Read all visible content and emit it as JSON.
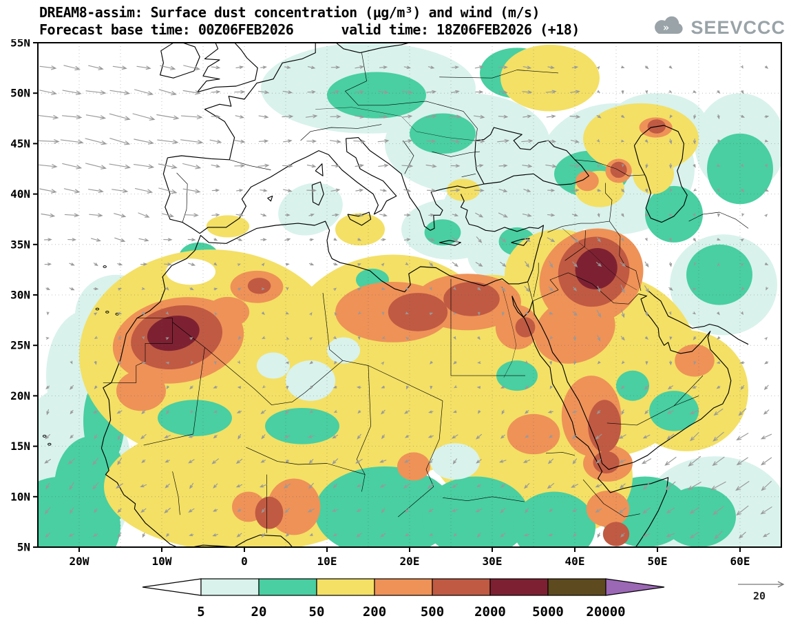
{
  "header": {
    "title": "DREAM8-assim: Surface dust concentration (µg/m³) and wind (m/s)",
    "subtitle": "Forecast base time: 00Z06FEB2026      valid time: 18Z06FEB2026 (+18)"
  },
  "logo": {
    "text": "SEEVCCC",
    "chevrons": "»"
  },
  "chart_data": {
    "type": "heatmap",
    "title": "DREAM8-assim: Surface dust concentration (µg/m³) and wind (m/s)",
    "model": "DREAM8-assim",
    "variable": "Surface dust concentration",
    "units": "µg/m³",
    "wind_units": "m/s",
    "forecast_base_time": "00Z06FEB2026",
    "valid_time": "18Z06FEB2026",
    "lead_hours": "+18",
    "lon_range": [
      -25,
      65
    ],
    "lat_range": [
      5,
      55
    ],
    "lat_ticks": [
      "55N",
      "50N",
      "45N",
      "40N",
      "35N",
      "30N",
      "25N",
      "20N",
      "15N",
      "10N",
      "5N"
    ],
    "lon_ticks": [
      "20W",
      "10W",
      "0",
      "10E",
      "20E",
      "30E",
      "40E",
      "50E",
      "60E"
    ],
    "grid": "dotted-5deg",
    "legend_position": "bottom",
    "colorbar": {
      "levels": [
        "5",
        "20",
        "50",
        "200",
        "500",
        "2000",
        "5000",
        "20000"
      ],
      "colors": {
        "below": "#ffffff",
        "c1": "#d9f2ec",
        "c2": "#49cfa1",
        "c3": "#f3e065",
        "c4": "#ee9258",
        "c5": "#c05a43",
        "c6": "#7d2132",
        "c7": "#5e4a1f",
        "above": "#9a68b4"
      }
    },
    "wind_reference": {
      "value": "20",
      "units": "m/s"
    },
    "wind_arrow_color": "#999999",
    "dust_features": [
      [
        "c1",
        -21,
        12,
        7.5,
        9,
        0
      ],
      [
        "c1",
        -19,
        22,
        5,
        6.5,
        0
      ],
      [
        "c1",
        -15.5,
        28,
        5,
        4,
        0
      ],
      [
        "c1",
        15,
        50.5,
        13,
        4.5,
        0
      ],
      [
        "c1",
        27,
        45,
        10,
        5,
        0
      ],
      [
        "c1",
        33,
        38.5,
        9,
        4.5,
        0
      ],
      [
        "c1",
        45,
        42.5,
        9.5,
        6.5,
        0
      ],
      [
        "c1",
        25,
        36.5,
        6,
        3,
        0
      ],
      [
        "c1",
        32,
        34,
        5,
        3,
        0
      ],
      [
        "c1",
        8,
        38.5,
        4,
        2.5,
        -20
      ],
      [
        "c1",
        57,
        8,
        9,
        6,
        0
      ],
      [
        "c1",
        58,
        31,
        6.5,
        5,
        0
      ],
      [
        "c1",
        60,
        45,
        5.5,
        5,
        0
      ],
      [
        "c1",
        50,
        47,
        6,
        3,
        0
      ],
      [
        "c2",
        -22,
        7,
        7,
        5,
        0
      ],
      [
        "c2",
        -18.5,
        11,
        4.5,
        5,
        0
      ],
      [
        "c2",
        -17,
        17.5,
        2.5,
        4.5,
        0
      ],
      [
        "c2",
        16,
        49.8,
        6,
        2.3,
        0
      ],
      [
        "c2",
        24,
        46,
        4,
        2,
        0
      ],
      [
        "c2",
        33,
        52,
        4.5,
        2.5,
        0
      ],
      [
        "c2",
        42,
        42,
        4.5,
        2.3,
        0
      ],
      [
        "c2",
        52,
        38,
        3.5,
        2.8,
        0
      ],
      [
        "c2",
        60,
        42.5,
        4,
        3.5,
        0
      ],
      [
        "c2",
        57.5,
        32,
        4,
        3,
        0
      ],
      [
        "c2",
        24,
        36.2,
        2.2,
        1.3,
        0
      ],
      [
        "c2",
        33,
        35.3,
        2.2,
        1.4,
        0
      ],
      [
        "c2",
        -5.5,
        33.8,
        2.4,
        1.4,
        0
      ],
      [
        "c2",
        48.5,
        8.5,
        5.5,
        3.5,
        0
      ],
      [
        "c2",
        55,
        8,
        4.5,
        3,
        0
      ],
      [
        "c3",
        -4,
        24,
        16,
        10.5,
        0
      ],
      [
        "c3",
        18,
        23,
        14,
        11,
        0
      ],
      [
        "c3",
        33,
        19,
        12,
        11,
        0
      ],
      [
        "c3",
        44,
        23,
        11,
        9,
        0
      ],
      [
        "c3",
        0,
        11,
        17,
        6.5,
        0
      ],
      [
        "c3",
        38,
        12,
        9,
        6,
        0
      ],
      [
        "c3",
        53.5,
        20.5,
        7.5,
        6,
        0
      ],
      [
        "c3",
        38,
        32,
        6.5,
        4.5,
        0
      ],
      [
        "c3",
        30,
        28,
        6,
        4,
        0
      ],
      [
        "c3",
        48,
        45.5,
        7,
        3.5,
        0
      ],
      [
        "c3",
        37,
        51.5,
        6,
        3.3,
        0
      ],
      [
        "c3",
        43,
        40.5,
        3,
        1.8,
        0
      ],
      [
        "c3",
        49.5,
        42,
        2.5,
        2,
        0
      ],
      [
        "c3",
        26.5,
        40.4,
        2,
        1.1,
        0
      ],
      [
        "c3",
        14,
        36.5,
        3,
        1.6,
        0
      ],
      [
        "c3",
        -2,
        36.8,
        2.6,
        1.1,
        0
      ],
      [
        "c2",
        -6,
        17.8,
        4.5,
        1.8,
        0
      ],
      [
        "c2",
        7,
        17,
        4.5,
        1.8,
        0
      ],
      [
        "c2",
        17,
        8.5,
        8.5,
        4.5,
        0
      ],
      [
        "c2",
        28,
        8,
        6.5,
        4,
        0
      ],
      [
        "c2",
        37.5,
        7,
        5,
        3.5,
        0
      ],
      [
        "c2",
        33,
        22,
        2.5,
        1.5,
        0
      ],
      [
        "c2",
        15.5,
        31.5,
        2,
        1.1,
        0
      ],
      [
        "c2",
        52,
        18.5,
        3,
        2,
        0
      ],
      [
        "c2",
        47,
        21,
        2,
        1.5,
        0
      ],
      [
        "c1",
        8,
        21.5,
        3,
        2,
        0
      ],
      [
        "c1",
        3.5,
        23,
        2,
        1.3,
        0
      ],
      [
        "c1",
        12,
        24.5,
        2,
        1.3,
        0
      ],
      [
        "c0",
        -6.5,
        32.3,
        3,
        1.3,
        0
      ],
      [
        "c1",
        25.5,
        13.5,
        3,
        1.8,
        0
      ],
      [
        "c4",
        -8,
        25.5,
        8,
        4.2,
        -10
      ],
      [
        "c4",
        -12.5,
        20.5,
        3,
        2,
        0
      ],
      [
        "c4",
        1.5,
        30.8,
        3.2,
        1.6,
        0
      ],
      [
        "c4",
        -2,
        28.3,
        2.6,
        1.5,
        0
      ],
      [
        "c4",
        18,
        28.3,
        7,
        3,
        0
      ],
      [
        "c4",
        27,
        29.3,
        6.5,
        2.8,
        0
      ],
      [
        "c4",
        33,
        26.8,
        2.6,
        2.2,
        0
      ],
      [
        "c4",
        42,
        31.8,
        6.5,
        4.6,
        -30
      ],
      [
        "c4",
        40,
        26.5,
        5,
        3.2,
        -20
      ],
      [
        "c4",
        42,
        18,
        3.6,
        4,
        0
      ],
      [
        "c4",
        44,
        13.3,
        3,
        1.8,
        0
      ],
      [
        "c4",
        35,
        16.2,
        3.2,
        2,
        0
      ],
      [
        "c4",
        6,
        9,
        3.2,
        2.8,
        0
      ],
      [
        "c4",
        0.5,
        9,
        2,
        1.5,
        0
      ],
      [
        "c4",
        44,
        8.8,
        2.6,
        1.8,
        0
      ],
      [
        "c4",
        49.8,
        46.6,
        2,
        1,
        0
      ],
      [
        "c4",
        45.3,
        42.3,
        1.6,
        1.2,
        0
      ],
      [
        "c4",
        41.5,
        41.3,
        1.4,
        1,
        0
      ],
      [
        "c4",
        54.5,
        23.5,
        2.4,
        1.6,
        0
      ],
      [
        "c4",
        20.5,
        13,
        2,
        1.4,
        0
      ],
      [
        "c5",
        -8.2,
        25.8,
        5.6,
        3.1,
        -12
      ],
      [
        "c5",
        21,
        28.3,
        3.6,
        1.9,
        0
      ],
      [
        "c5",
        27.5,
        29.6,
        3.4,
        1.7,
        0
      ],
      [
        "c5",
        42.3,
        32.3,
        4.4,
        3.4,
        -35
      ],
      [
        "c5",
        43.6,
        17,
        2,
        2.6,
        0
      ],
      [
        "c5",
        43.8,
        13.4,
        1.6,
        1.1,
        0
      ],
      [
        "c5",
        3,
        8.4,
        1.7,
        1.6,
        0
      ],
      [
        "c5",
        45,
        6.3,
        1.6,
        1.2,
        0
      ],
      [
        "c5",
        45.3,
        42.4,
        1,
        0.8,
        0
      ],
      [
        "c5",
        49.9,
        46.7,
        1.1,
        0.7,
        0
      ],
      [
        "c5",
        1.8,
        30.9,
        1.4,
        0.8,
        0
      ],
      [
        "c5",
        34,
        26.8,
        1.2,
        1,
        0
      ],
      [
        "c6",
        -8.6,
        26.2,
        3.2,
        1.7,
        -12
      ],
      [
        "c6",
        42.6,
        32.6,
        2.6,
        2,
        -35
      ]
    ]
  }
}
